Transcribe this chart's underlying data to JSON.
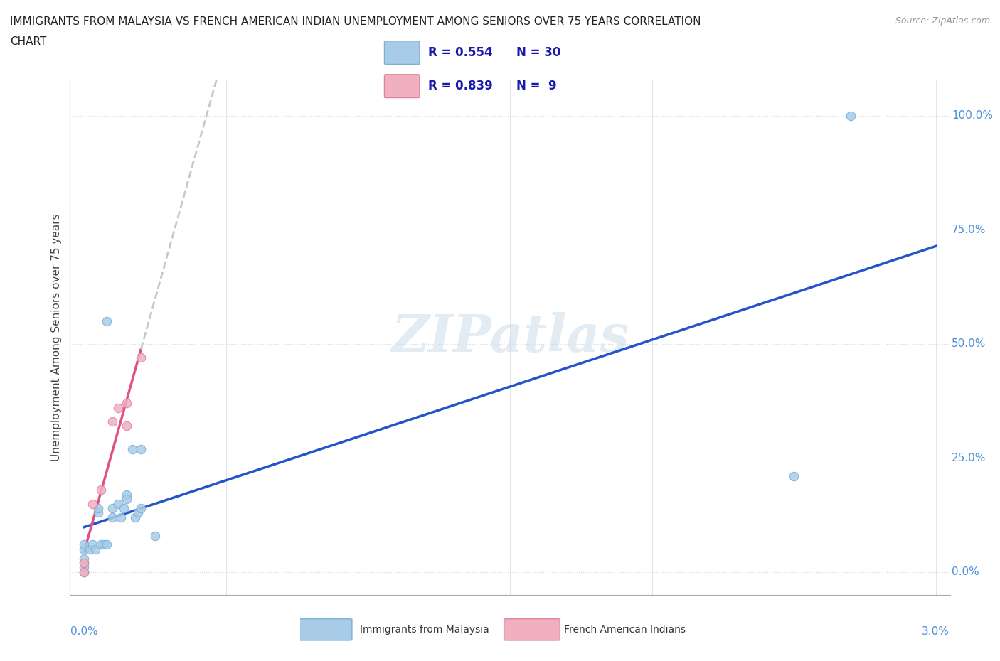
{
  "title_line1": "IMMIGRANTS FROM MALAYSIA VS FRENCH AMERICAN INDIAN UNEMPLOYMENT AMONG SENIORS OVER 75 YEARS CORRELATION",
  "title_line2": "CHART",
  "source": "Source: ZipAtlas.com",
  "ylabel": "Unemployment Among Seniors over 75 years",
  "xmin": 0.0,
  "xmax": 0.03,
  "ymin": -0.05,
  "ymax": 1.08,
  "blue_scatter_color": "#a8cce8",
  "blue_scatter_edge": "#7ab0d8",
  "pink_scatter_color": "#f0b0c0",
  "pink_scatter_edge": "#e080a0",
  "trend_blue_color": "#2255cc",
  "trend_pink_color": "#e05080",
  "trend_gray_color": "#c8c8c8",
  "ytick_color": "#4a90d9",
  "xtick_color": "#4a90d9",
  "grid_color": "#d8d8e8",
  "legend_text_color": "#1a1aaa",
  "blue_x": [
    0.0,
    0.0,
    0.0,
    0.0,
    0.0,
    0.0,
    0.0002,
    0.0003,
    0.0004,
    0.0005,
    0.0005,
    0.0006,
    0.0007,
    0.0008,
    0.0008,
    0.001,
    0.001,
    0.0012,
    0.0013,
    0.0014,
    0.0015,
    0.0015,
    0.0017,
    0.0018,
    0.0019,
    0.002,
    0.002,
    0.0025,
    0.027,
    0.025
  ],
  "blue_y": [
    0.0,
    0.01,
    0.02,
    0.03,
    0.05,
    0.06,
    0.05,
    0.06,
    0.05,
    0.13,
    0.14,
    0.06,
    0.06,
    0.06,
    0.55,
    0.12,
    0.14,
    0.15,
    0.12,
    0.14,
    0.17,
    0.16,
    0.27,
    0.12,
    0.13,
    0.14,
    0.27,
    0.08,
    1.0,
    0.21
  ],
  "pink_x": [
    0.0,
    0.0,
    0.0003,
    0.0006,
    0.001,
    0.0012,
    0.0015,
    0.0015,
    0.002
  ],
  "pink_y": [
    0.0,
    0.02,
    0.15,
    0.18,
    0.33,
    0.36,
    0.32,
    0.37,
    0.47
  ],
  "watermark_text": "ZIPatlas",
  "legend_R1": "R = 0.554",
  "legend_N1": "N = 30",
  "legend_R2": "R = 0.839",
  "legend_N2": "N =  9"
}
